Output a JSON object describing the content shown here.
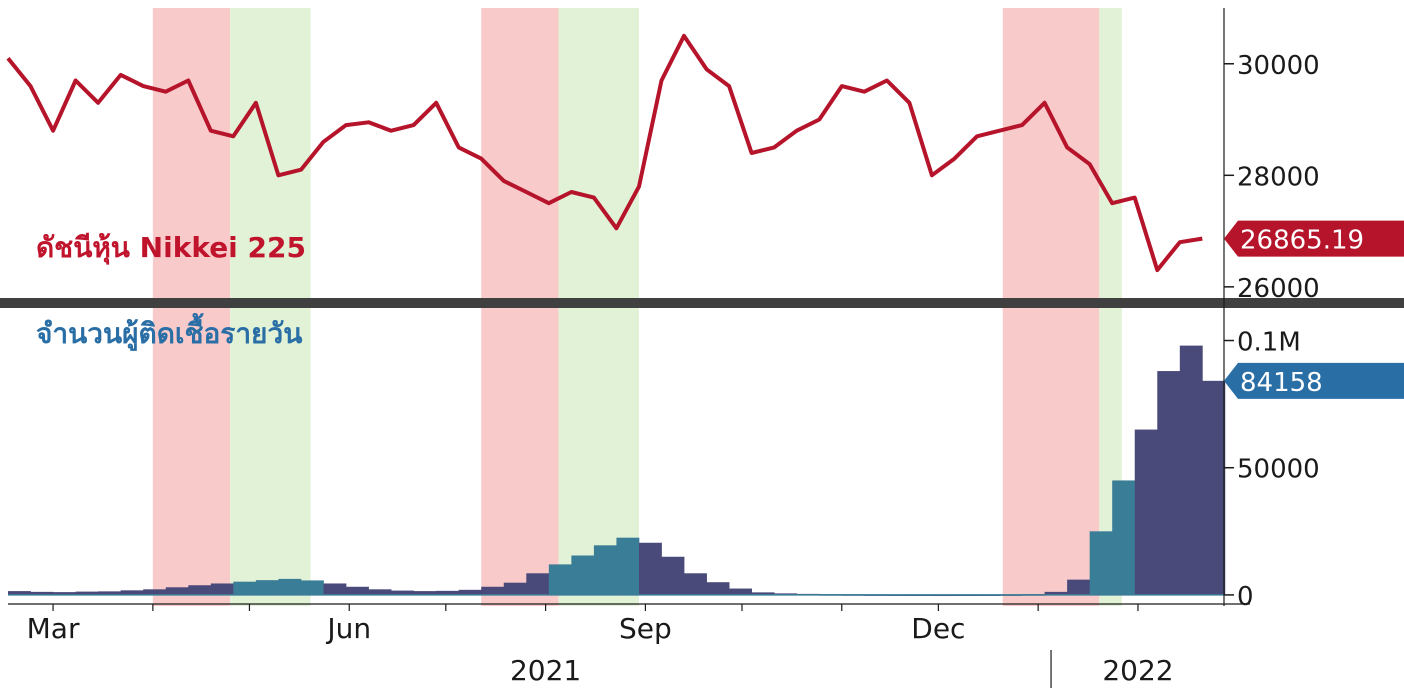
{
  "colors": {
    "price_line": "#b5142a",
    "cases_bar": "#4a4a7a",
    "cases_bar_teal": "#3a7d97",
    "red_band": "#f9caca",
    "green_band": "#e2f2d7",
    "price_tag": "#b5142a",
    "cases_tag": "#2a6ea6",
    "label_price": "#c0142d",
    "label_cases": "#2a6ea6",
    "divider": "#404040",
    "axis_text": "#1a1a1a"
  },
  "chart_data": [
    {
      "type": "line",
      "series": [
        {
          "name": "ดัชนีหุ้น Nikkei 225",
          "x": [
            "2021-02-15",
            "2021-02-22",
            "2021-03-01",
            "2021-03-08",
            "2021-03-15",
            "2021-03-22",
            "2021-03-29",
            "2021-04-05",
            "2021-04-12",
            "2021-04-19",
            "2021-04-26",
            "2021-05-03",
            "2021-05-10",
            "2021-05-17",
            "2021-05-24",
            "2021-05-31",
            "2021-06-07",
            "2021-06-14",
            "2021-06-21",
            "2021-06-28",
            "2021-07-05",
            "2021-07-12",
            "2021-07-19",
            "2021-07-26",
            "2021-08-02",
            "2021-08-09",
            "2021-08-16",
            "2021-08-23",
            "2021-08-30",
            "2021-09-06",
            "2021-09-13",
            "2021-09-20",
            "2021-09-27",
            "2021-10-04",
            "2021-10-11",
            "2021-10-18",
            "2021-10-25",
            "2021-11-01",
            "2021-11-08",
            "2021-11-15",
            "2021-11-22",
            "2021-11-29",
            "2021-12-06",
            "2021-12-13",
            "2021-12-20",
            "2021-12-27",
            "2022-01-03",
            "2022-01-10",
            "2022-01-17",
            "2022-01-24",
            "2022-01-31",
            "2022-02-07",
            "2022-02-14",
            "2022-02-21"
          ],
          "values": [
            30100,
            29600,
            28800,
            29700,
            29300,
            29800,
            29600,
            29500,
            29700,
            28800,
            28700,
            29300,
            28000,
            28100,
            28600,
            28900,
            28950,
            28800,
            28900,
            29300,
            28500,
            28300,
            27900,
            27700,
            27500,
            27700,
            27600,
            27050,
            27800,
            29700,
            30500,
            29900,
            29600,
            28400,
            28500,
            28800,
            29000,
            29600,
            29500,
            29700,
            29300,
            28000,
            28300,
            28700,
            28800,
            28900,
            29300,
            28500,
            28200,
            27500,
            27600,
            26300,
            26800,
            26865.19
          ]
        }
      ],
      "ylim": [
        25800,
        31000
      ],
      "yticks": [
        26000,
        28000,
        30000
      ],
      "last_value_label": "26865.19",
      "grid": false
    },
    {
      "type": "bar",
      "series": [
        {
          "name": "จำนวนผู้ติดเชื้อรายวัน",
          "x": [
            "2021-02-15",
            "2021-02-22",
            "2021-03-01",
            "2021-03-08",
            "2021-03-15",
            "2021-03-22",
            "2021-03-29",
            "2021-04-05",
            "2021-04-12",
            "2021-04-19",
            "2021-04-26",
            "2021-05-03",
            "2021-05-10",
            "2021-05-17",
            "2021-05-24",
            "2021-05-31",
            "2021-06-07",
            "2021-06-14",
            "2021-06-21",
            "2021-06-28",
            "2021-07-05",
            "2021-07-12",
            "2021-07-19",
            "2021-07-26",
            "2021-08-02",
            "2021-08-09",
            "2021-08-16",
            "2021-08-23",
            "2021-08-30",
            "2021-09-06",
            "2021-09-13",
            "2021-09-20",
            "2021-09-27",
            "2021-10-04",
            "2021-10-11",
            "2021-10-18",
            "2021-10-25",
            "2021-11-01",
            "2021-11-08",
            "2021-11-15",
            "2021-11-22",
            "2021-11-29",
            "2021-12-06",
            "2021-12-13",
            "2021-12-20",
            "2021-12-27",
            "2022-01-03",
            "2022-01-10",
            "2022-01-17",
            "2022-01-24",
            "2022-01-31",
            "2022-02-07",
            "2022-02-14",
            "2022-02-21"
          ],
          "values": [
            1500,
            1200,
            1100,
            1300,
            1400,
            1800,
            2200,
            3000,
            3800,
            4500,
            5200,
            5800,
            6300,
            5700,
            4500,
            3200,
            2200,
            1700,
            1500,
            1600,
            2000,
            3200,
            4800,
            8500,
            12000,
            15500,
            19500,
            22500,
            20500,
            15000,
            8500,
            5000,
            2500,
            1000,
            600,
            400,
            300,
            250,
            200,
            180,
            160,
            150,
            160,
            180,
            220,
            300,
            1200,
            6000,
            25000,
            45000,
            65000,
            88000,
            98000,
            84158
          ]
        }
      ],
      "ylim": [
        -2000,
        112000
      ],
      "yticks": [
        0,
        50000
      ],
      "ytick_labels": [
        "0",
        "50000"
      ],
      "top_tick_label": "0.1M",
      "last_value_label": "84158",
      "grid": false
    }
  ],
  "x_axis": {
    "month_labels": [
      {
        "date": "2021-03-01",
        "label": "Mar"
      },
      {
        "date": "2021-06-01",
        "label": "Jun"
      },
      {
        "date": "2021-09-01",
        "label": "Sep"
      },
      {
        "date": "2021-12-01",
        "label": "Dec"
      }
    ],
    "year_labels": [
      {
        "date": "2021-08-01",
        "label": "2021"
      },
      {
        "date": "2022-02-01",
        "label": "2022"
      }
    ],
    "year_divider_date": "2022-01-05"
  },
  "bands": [
    {
      "start": "2021-04-01",
      "end": "2021-04-25",
      "color": "red"
    },
    {
      "start": "2021-04-25",
      "end": "2021-05-20",
      "color": "green"
    },
    {
      "start": "2021-07-12",
      "end": "2021-08-05",
      "color": "red"
    },
    {
      "start": "2021-08-05",
      "end": "2021-08-30",
      "color": "green"
    },
    {
      "start": "2021-12-21",
      "end": "2022-01-20",
      "color": "red"
    },
    {
      "start": "2022-01-20",
      "end": "2022-01-27",
      "color": "green"
    }
  ]
}
